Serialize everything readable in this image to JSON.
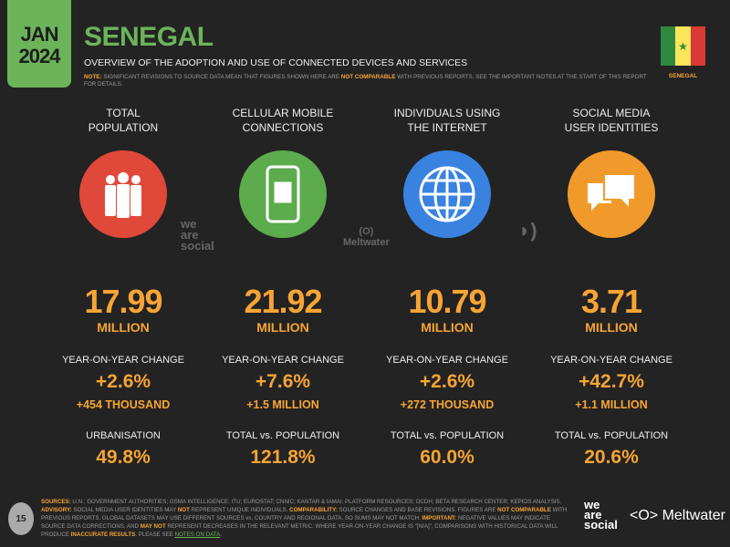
{
  "header": {
    "month": "JAN",
    "year": "2024",
    "title": "SENEGAL",
    "subtitle": "OVERVIEW OF THE ADOPTION AND USE OF CONNECTED DEVICES AND SERVICES",
    "note": [
      {
        "t": "NOTE:",
        "hl": true
      },
      {
        "t": " SIGNIFICANT REVISIONS TO SOURCE DATA MEAN THAT FIGURES SHOWN HERE ARE ",
        "hl": false
      },
      {
        "t": "NOT COMPARABLE",
        "hl": true
      },
      {
        "t": " WITH PREVIOUS REPORTS. SEE THE IMPORTANT NOTES AT THE START OF THIS REPORT FOR DETAILS.",
        "hl": false
      }
    ],
    "flag_label": "SENEGAL",
    "flag_colors": [
      "#2f8a3e",
      "#fbe55a",
      "#d93a35"
    ]
  },
  "columns": [
    {
      "heading1": "TOTAL",
      "heading2": "POPULATION",
      "icon": "people-icon",
      "color": "#e0493a",
      "value": "17.99",
      "unit": "MILLION",
      "yoy_label": "YEAR-ON-YEAR CHANGE",
      "yoy": "+2.6%",
      "yoy_abs": "+454 THOUSAND",
      "extra_label": "URBANISATION",
      "extra_value": "49.8%"
    },
    {
      "heading1": "CELLULAR MOBILE",
      "heading2": "CONNECTIONS",
      "icon": "mobile-phone-icon",
      "color": "#5cab4d",
      "value": "21.92",
      "unit": "MILLION",
      "yoy_label": "YEAR-ON-YEAR CHANGE",
      "yoy": "+7.6%",
      "yoy_abs": "+1.5 MILLION",
      "extra_label": "TOTAL vs. POPULATION",
      "extra_value": "121.8%"
    },
    {
      "heading1": "INDIVIDUALS USING",
      "heading2": "THE INTERNET",
      "icon": "globe-icon",
      "color": "#3a82e0",
      "value": "10.79",
      "unit": "MILLION",
      "yoy_label": "YEAR-ON-YEAR CHANGE",
      "yoy": "+2.6%",
      "yoy_abs": "+272 THOUSAND",
      "extra_label": "TOTAL vs. POPULATION",
      "extra_value": "60.0%"
    },
    {
      "heading1": "SOCIAL MEDIA",
      "heading2": "USER IDENTITIES",
      "icon": "chat-bubbles-icon",
      "color": "#f19a2c",
      "value": "3.71",
      "unit": "MILLION",
      "yoy_label": "YEAR-ON-YEAR CHANGE",
      "yoy": "+42.7%",
      "yoy_abs": "+1.1 MILLION",
      "extra_label": "TOTAL vs. POPULATION",
      "extra_value": "20.6%"
    }
  ],
  "watermarks": {
    "wearesocial": "we are social",
    "meltwater": "Meltwater"
  },
  "footer": {
    "page": "15",
    "text": [
      {
        "t": "SOURCES:",
        "hl": true
      },
      {
        "t": " U.N.; GOVERNMENT AUTHORITIES; GSMA INTELLIGENCE; ITU; EUROSTAT; CNNIC; KANTAR & IAMAI; PLATFORM RESOURCES; OCDH; BETA RESEARCH CENTER; KEPIOS ANALYSIS. ",
        "hl": false
      },
      {
        "t": "ADVISORY:",
        "hl": true
      },
      {
        "t": " SOCIAL MEDIA USER IDENTITIES MAY ",
        "hl": false
      },
      {
        "t": "NOT",
        "hl": true
      },
      {
        "t": " REPRESENT UNIQUE INDIVIDUALS. ",
        "hl": false
      },
      {
        "t": "COMPARABILITY:",
        "hl": true
      },
      {
        "t": " SOURCE CHANGES AND BASE REVISIONS. FIGURES ARE ",
        "hl": false
      },
      {
        "t": "NOT COMPARABLE",
        "hl": true
      },
      {
        "t": " WITH PREVIOUS REPORTS. GLOBAL DATASETS MAY USE DIFFERENT SOURCES vs. COUNTRY AND REGIONAL DATA, SO SUMS MAY NOT MATCH. ",
        "hl": false
      },
      {
        "t": "IMPORTANT:",
        "hl": true
      },
      {
        "t": " NEGATIVE VALUES MAY INDICATE SOURCE DATA CORRECTIONS, AND ",
        "hl": false
      },
      {
        "t": "MAY NOT",
        "hl": true
      },
      {
        "t": " REPRESENT DECREASES IN THE RELEVANT METRIC. WHERE YEAR-ON-YEAR CHANGE IS \"[N/A]\", COMPARISONS WITH HISTORICAL DATA WILL PRODUCE ",
        "hl": false
      },
      {
        "t": "INACCURATE RESULTS",
        "hl": true
      },
      {
        "t": ". PLEASE SEE ",
        "hl": false
      },
      {
        "t": "NOTES ON DATA",
        "hl": "link"
      },
      {
        "t": ".",
        "hl": false
      }
    ],
    "brand1": "we are social",
    "brand2": "Meltwater"
  }
}
